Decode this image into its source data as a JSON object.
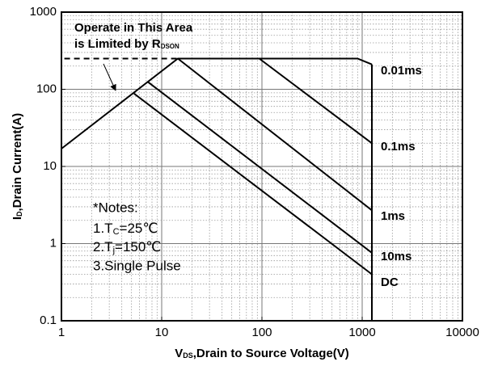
{
  "chart_data": {
    "type": "line",
    "xscale": "log",
    "yscale": "log",
    "xlim": [
      1,
      10000
    ],
    "ylim": [
      0.1,
      1000
    ],
    "xticks": [
      1,
      10,
      100,
      1000,
      10000
    ],
    "yticks": [
      0.1,
      1,
      10,
      100,
      1000
    ],
    "grid": true,
    "xlabel": [
      "V",
      "DS",
      ",Drain to Source Voltage(V)"
    ],
    "ylabel": [
      "I",
      "D",
      ",Drain Current(A)"
    ],
    "annotation": [
      "Operate in This Area",
      [
        "is Limited by R",
        "DSON"
      ]
    ],
    "notes": [
      "*Notes:",
      [
        "1.T",
        "C",
        "=25℃"
      ],
      [
        "2.T",
        "j",
        "=150℃"
      ],
      "3.Single Pulse"
    ],
    "series": [
      {
        "name": "0.01ms",
        "color": "#000000",
        "x": [
          1,
          14.5,
          900,
          1250
        ],
        "values": [
          17,
          250,
          250,
          210
        ]
      },
      {
        "name": "0.1ms",
        "color": "#000000",
        "x": [
          94,
          1250
        ],
        "values": [
          250,
          20
        ]
      },
      {
        "name": "1ms",
        "color": "#000000",
        "x": [
          14.5,
          1250
        ],
        "values": [
          250,
          2.7
        ]
      },
      {
        "name": "10ms",
        "color": "#000000",
        "x": [
          7.2,
          1250
        ],
        "values": [
          126,
          0.76
        ]
      },
      {
        "name": "DC",
        "color": "#000000",
        "x": [
          5.3,
          1250
        ],
        "values": [
          88,
          0.4
        ]
      },
      {
        "color": "#000000",
        "x": [
          1250,
          1250
        ],
        "values": [
          210,
          0.1
        ]
      },
      {
        "color": "#000000",
        "dashed": true,
        "x": [
          1.07,
          14.5
        ],
        "values": [
          250,
          250
        ]
      }
    ]
  }
}
